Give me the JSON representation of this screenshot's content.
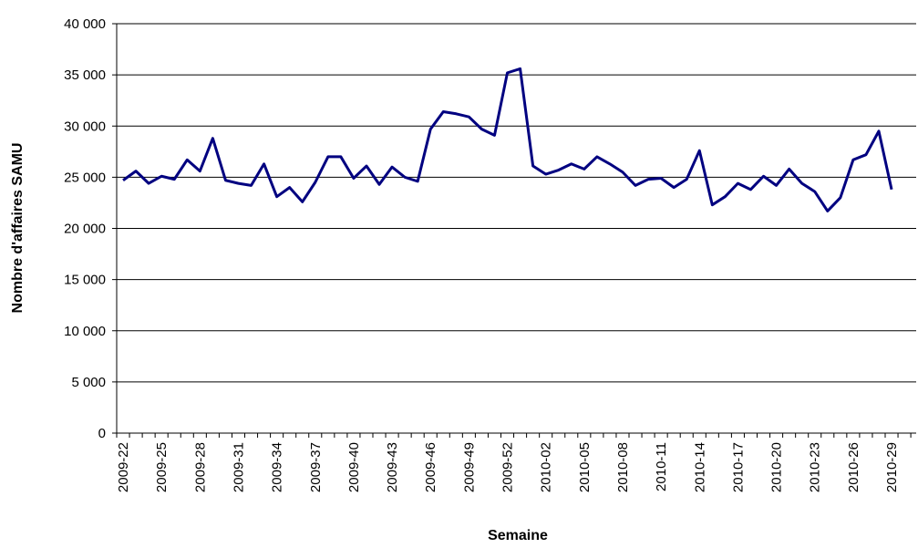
{
  "chart_data": {
    "type": "line",
    "x_label": "Semaine",
    "y_label": "Nombre d'affaires SAMU",
    "categories": [
      "2009-22",
      null,
      null,
      "2009-25",
      null,
      null,
      "2009-28",
      null,
      null,
      "2009-31",
      null,
      null,
      "2009-34",
      null,
      null,
      "2009-37",
      null,
      null,
      "2009-40",
      null,
      null,
      "2009-43",
      null,
      null,
      "2009-46",
      null,
      null,
      "2009-49",
      null,
      null,
      "2009-52",
      null,
      null,
      "2010-02",
      null,
      null,
      "2010-05",
      null,
      null,
      "2010-08",
      null,
      null,
      "2010-11",
      null,
      null,
      "2010-14",
      null,
      null,
      "2010-17",
      null,
      null,
      "2010-20",
      null,
      null,
      "2010-23",
      null,
      null,
      "2010-26",
      null,
      null,
      "2010-29"
    ],
    "values": [
      24700,
      25600,
      24400,
      25100,
      24800,
      26700,
      25600,
      28800,
      24700,
      24400,
      24200,
      26300,
      23100,
      24000,
      22600,
      24500,
      27000,
      27000,
      24900,
      26100,
      24300,
      26000,
      25000,
      24600,
      29700,
      31400,
      31200,
      30900,
      29700,
      29100,
      35200,
      35600,
      26100,
      25300,
      25700,
      26300,
      25800,
      27000,
      26300,
      25500,
      24200,
      24800,
      24900,
      24000,
      24800,
      27600,
      22300,
      23100,
      24400,
      23800,
      25100,
      24200,
      25800,
      24400,
      23600,
      21700,
      23000,
      26700,
      27200,
      29500,
      23800
    ],
    "color": "#000080",
    "ylim": [
      0,
      40000
    ],
    "yticks": [
      0,
      {
        "value": 5000,
        "label": "5 000"
      },
      {
        "value": 10000,
        "label": "10 000"
      },
      {
        "value": 15000,
        "label": "15 000"
      },
      {
        "value": 20000,
        "label": "20 000"
      },
      {
        "value": 25000,
        "label": "25 000"
      },
      {
        "value": 30000,
        "label": "30 000"
      },
      {
        "value": 35000,
        "label": "35 000"
      },
      {
        "value": 40000,
        "label": "40 000"
      }
    ],
    "grid": true
  }
}
